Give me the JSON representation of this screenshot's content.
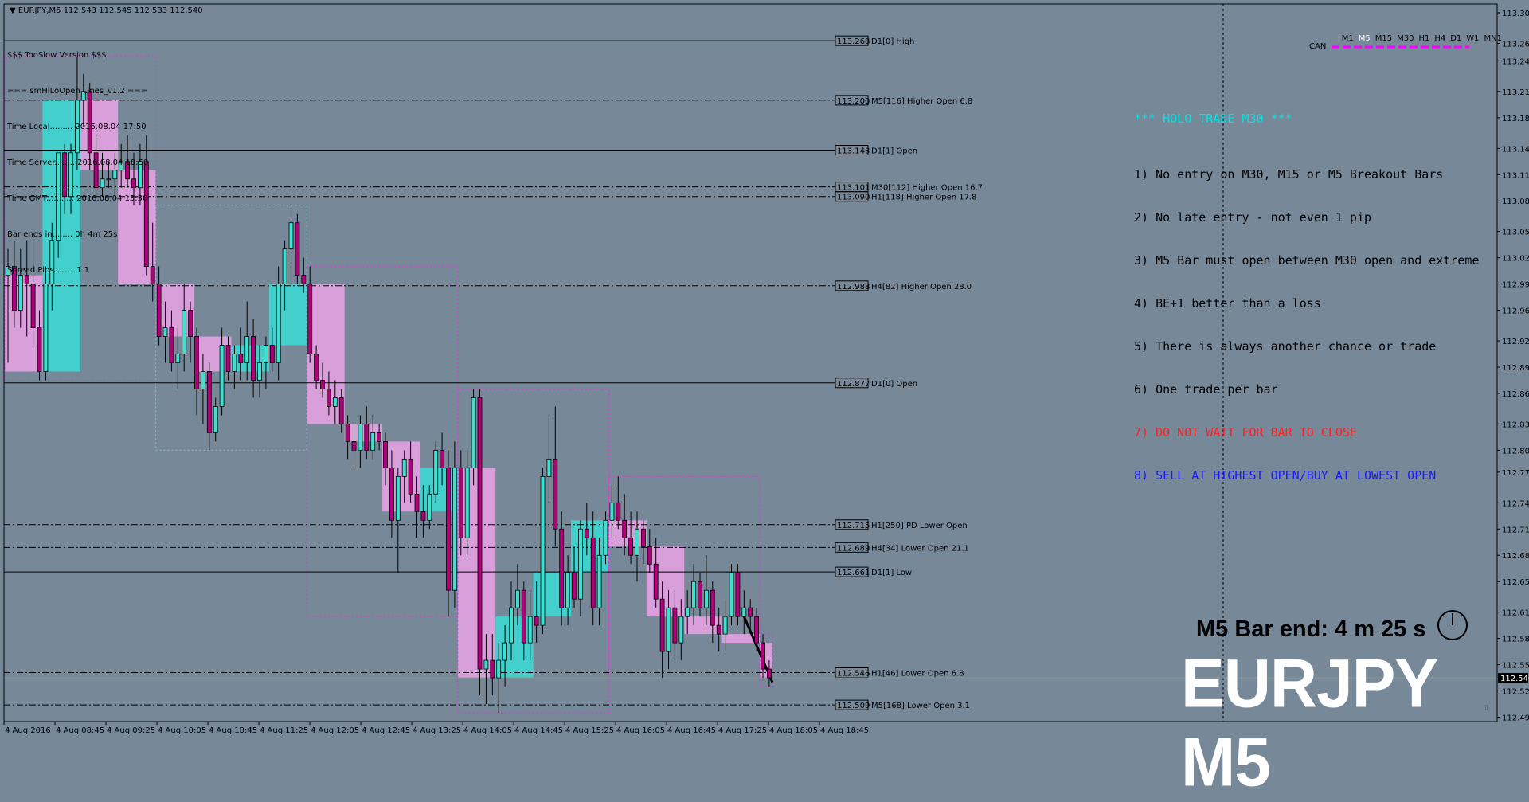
{
  "window": {
    "symbol_header": "EURJPY,M5  112.543 112.545 112.533 112.540"
  },
  "indicator": {
    "lines": [
      "$$$ TooSlow Version $$$",
      "=== smHiLoOpen Lines_v1.2 ===",
      "Time Local......... 2016.08.04 17:50",
      "Time Server........ 2016.08.04 18:50",
      "Time GMT........... 2016.08.04 15:50",
      "Bar ends in........ 0h 4m 25s",
      "Spread Pips........ 1.1"
    ]
  },
  "timeframes": {
    "items": [
      "M1",
      "M5",
      "M15",
      "M30",
      "H1",
      "H4",
      "D1",
      "W1",
      "MN1"
    ],
    "active": "M5",
    "can_label": "CAN"
  },
  "holo": {
    "title": "*** HOLO TRADE M30 ***",
    "rules": [
      {
        "text": "1) No entry on M30, M15 or M5 Breakout Bars",
        "style": "normal"
      },
      {
        "text": "2) No late entry - not even 1 pip",
        "style": "normal"
      },
      {
        "text": "3) M5 Bar must open between M30 open and extreme",
        "style": "normal"
      },
      {
        "text": "4) BE+1 better than a loss",
        "style": "normal"
      },
      {
        "text": "5) There is always another chance or trade",
        "style": "normal"
      },
      {
        "text": "6) One trade per bar",
        "style": "normal"
      },
      {
        "text": "7) DO NOT WAIT FOR BAR TO CLOSE",
        "style": "red"
      },
      {
        "text": "8) SELL AT HIGHEST OPEN/BUY AT LOWEST OPEN",
        "style": "blue"
      }
    ]
  },
  "bar_end_text": "M5 Bar end: 4 m 25 s",
  "big_symbol": "EURJPY M5",
  "colors": {
    "background": "#778899",
    "bull_box": "#40d4d0",
    "bear_box": "#dda0dd",
    "candle_bull": "#40e0d0",
    "candle_bear": "#b0007a",
    "current_price_bg": "#000000"
  },
  "chart_data": {
    "type": "candlestick",
    "symbol": "EURJPY",
    "timeframe": "M5",
    "ylim": [
      112.49,
      113.31
    ],
    "current_price": 112.54,
    "x_ticks": [
      "4 Aug 2016",
      "4 Aug 08:45",
      "4 Aug 09:25",
      "4 Aug 10:05",
      "4 Aug 10:45",
      "4 Aug 11:25",
      "4 Aug 12:05",
      "4 Aug 12:45",
      "4 Aug 13:25",
      "4 Aug 14:05",
      "4 Aug 14:45",
      "4 Aug 15:25",
      "4 Aug 16:05",
      "4 Aug 16:45",
      "4 Aug 17:25",
      "4 Aug 18:05",
      "4 Aug 18:45"
    ],
    "y_ticks": [
      113.3,
      113.265,
      113.245,
      113.21,
      113.18,
      113.145,
      113.115,
      113.085,
      113.05,
      113.02,
      112.99,
      112.96,
      112.925,
      112.895,
      112.865,
      112.83,
      112.8,
      112.775,
      112.74,
      112.71,
      112.68,
      112.65,
      112.615,
      112.585,
      112.555,
      112.525,
      112.495
    ],
    "levels": [
      {
        "price": "113.268",
        "label": "D1[0] High",
        "style": "solid"
      },
      {
        "price": "113.200",
        "label": "M5[116] Higher Open 6.8",
        "style": "dashdot"
      },
      {
        "price": "113.143",
        "label": "D1[1] Open",
        "style": "solid"
      },
      {
        "price": "113.101",
        "label": "M30[112] Higher Open 16.7",
        "style": "dashdot"
      },
      {
        "price": "113.090",
        "label": "H1[118] Higher Open 17.8",
        "style": "dashdot"
      },
      {
        "price": "112.988",
        "label": "H4[82] Higher Open 28.0",
        "style": "dashdot"
      },
      {
        "price": "112.877",
        "label": "D1[0] Open",
        "style": "solid"
      },
      {
        "price": "112.715",
        "label": "H1[250] PD Lower Open",
        "style": "dashdot"
      },
      {
        "price": "112.689",
        "label": "H4[34] Lower Open 21.1",
        "style": "dashdot"
      },
      {
        "price": "112.661",
        "label": "D1[1] Low",
        "style": "solid"
      },
      {
        "price": "112.546",
        "label": "H1[46] Lower Open 6.8",
        "style": "dashdot"
      },
      {
        "price": "112.509",
        "label": "M5[168] Lower Open 3.1",
        "style": "dashdot"
      }
    ],
    "candles": [
      {
        "o": 113.0,
        "h": 113.03,
        "l": 112.9,
        "c": 113.01
      },
      {
        "o": 113.01,
        "h": 113.04,
        "l": 112.94,
        "c": 112.96
      },
      {
        "o": 112.96,
        "h": 113.03,
        "l": 112.94,
        "c": 113.0
      },
      {
        "o": 113.0,
        "h": 113.04,
        "l": 112.93,
        "c": 112.99
      },
      {
        "o": 112.99,
        "h": 113.05,
        "l": 112.92,
        "c": 112.94
      },
      {
        "o": 112.94,
        "h": 112.96,
        "l": 112.88,
        "c": 112.89
      },
      {
        "o": 112.89,
        "h": 113.01,
        "l": 112.88,
        "c": 112.99
      },
      {
        "o": 112.99,
        "h": 113.06,
        "l": 112.96,
        "c": 113.04
      },
      {
        "o": 113.04,
        "h": 113.14,
        "l": 113.02,
        "c": 113.14
      },
      {
        "o": 113.14,
        "h": 113.15,
        "l": 113.07,
        "c": 113.09
      },
      {
        "o": 113.09,
        "h": 113.15,
        "l": 113.07,
        "c": 113.14
      },
      {
        "o": 113.14,
        "h": 113.25,
        "l": 113.12,
        "c": 113.2
      },
      {
        "o": 113.2,
        "h": 113.23,
        "l": 113.17,
        "c": 113.21
      },
      {
        "o": 113.21,
        "h": 113.22,
        "l": 113.12,
        "c": 113.14
      },
      {
        "o": 113.14,
        "h": 113.16,
        "l": 113.09,
        "c": 113.1
      },
      {
        "o": 113.1,
        "h": 113.14,
        "l": 113.09,
        "c": 113.11
      },
      {
        "o": 113.11,
        "h": 113.13,
        "l": 113.1,
        "c": 113.11
      },
      {
        "o": 113.11,
        "h": 113.14,
        "l": 113.09,
        "c": 113.12
      },
      {
        "o": 113.12,
        "h": 113.15,
        "l": 113.1,
        "c": 113.13
      },
      {
        "o": 113.13,
        "h": 113.16,
        "l": 113.1,
        "c": 113.11
      },
      {
        "o": 113.11,
        "h": 113.14,
        "l": 113.08,
        "c": 113.1
      },
      {
        "o": 113.1,
        "h": 113.15,
        "l": 113.08,
        "c": 113.13
      },
      {
        "o": 113.13,
        "h": 113.16,
        "l": 113.0,
        "c": 113.01
      },
      {
        "o": 113.01,
        "h": 113.06,
        "l": 112.97,
        "c": 112.99
      },
      {
        "o": 112.99,
        "h": 113.01,
        "l": 112.92,
        "c": 112.93
      },
      {
        "o": 112.93,
        "h": 112.97,
        "l": 112.9,
        "c": 112.94
      },
      {
        "o": 112.94,
        "h": 112.96,
        "l": 112.89,
        "c": 112.9
      },
      {
        "o": 112.9,
        "h": 112.94,
        "l": 112.87,
        "c": 112.91
      },
      {
        "o": 112.91,
        "h": 112.99,
        "l": 112.89,
        "c": 112.96
      },
      {
        "o": 112.96,
        "h": 112.97,
        "l": 112.9,
        "c": 112.93
      },
      {
        "o": 112.93,
        "h": 112.94,
        "l": 112.84,
        "c": 112.87
      },
      {
        "o": 112.87,
        "h": 112.91,
        "l": 112.83,
        "c": 112.89
      },
      {
        "o": 112.89,
        "h": 112.9,
        "l": 112.8,
        "c": 112.82
      },
      {
        "o": 112.82,
        "h": 112.86,
        "l": 112.81,
        "c": 112.85
      },
      {
        "o": 112.85,
        "h": 112.94,
        "l": 112.84,
        "c": 112.92
      },
      {
        "o": 112.92,
        "h": 112.93,
        "l": 112.88,
        "c": 112.89
      },
      {
        "o": 112.89,
        "h": 112.92,
        "l": 112.87,
        "c": 112.91
      },
      {
        "o": 112.91,
        "h": 112.94,
        "l": 112.88,
        "c": 112.9
      },
      {
        "o": 112.9,
        "h": 112.97,
        "l": 112.88,
        "c": 112.93
      },
      {
        "o": 112.93,
        "h": 112.95,
        "l": 112.86,
        "c": 112.88
      },
      {
        "o": 112.88,
        "h": 112.92,
        "l": 112.86,
        "c": 112.9
      },
      {
        "o": 112.9,
        "h": 112.93,
        "l": 112.87,
        "c": 112.92
      },
      {
        "o": 112.92,
        "h": 112.94,
        "l": 112.89,
        "c": 112.9
      },
      {
        "o": 112.9,
        "h": 113.01,
        "l": 112.88,
        "c": 112.99
      },
      {
        "o": 112.99,
        "h": 113.04,
        "l": 112.96,
        "c": 113.03
      },
      {
        "o": 113.03,
        "h": 113.08,
        "l": 113.01,
        "c": 113.06
      },
      {
        "o": 113.06,
        "h": 113.07,
        "l": 112.99,
        "c": 113.0
      },
      {
        "o": 113.0,
        "h": 113.02,
        "l": 112.98,
        "c": 112.99
      },
      {
        "o": 112.99,
        "h": 113.01,
        "l": 112.9,
        "c": 112.91
      },
      {
        "o": 112.91,
        "h": 112.92,
        "l": 112.87,
        "c": 112.88
      },
      {
        "o": 112.88,
        "h": 112.9,
        "l": 112.86,
        "c": 112.87
      },
      {
        "o": 112.87,
        "h": 112.89,
        "l": 112.84,
        "c": 112.85
      },
      {
        "o": 112.85,
        "h": 112.88,
        "l": 112.83,
        "c": 112.86
      },
      {
        "o": 112.86,
        "h": 112.87,
        "l": 112.82,
        "c": 112.83
      },
      {
        "o": 112.83,
        "h": 112.84,
        "l": 112.79,
        "c": 112.81
      },
      {
        "o": 112.81,
        "h": 112.83,
        "l": 112.78,
        "c": 112.8
      },
      {
        "o": 112.8,
        "h": 112.84,
        "l": 112.78,
        "c": 112.83
      },
      {
        "o": 112.83,
        "h": 112.85,
        "l": 112.79,
        "c": 112.8
      },
      {
        "o": 112.8,
        "h": 112.84,
        "l": 112.79,
        "c": 112.82
      },
      {
        "o": 112.82,
        "h": 112.83,
        "l": 112.8,
        "c": 112.81
      },
      {
        "o": 112.81,
        "h": 112.82,
        "l": 112.76,
        "c": 112.78
      },
      {
        "o": 112.78,
        "h": 112.8,
        "l": 112.7,
        "c": 112.72
      },
      {
        "o": 112.72,
        "h": 112.78,
        "l": 112.66,
        "c": 112.77
      },
      {
        "o": 112.77,
        "h": 112.8,
        "l": 112.74,
        "c": 112.79
      },
      {
        "o": 112.79,
        "h": 112.81,
        "l": 112.74,
        "c": 112.75
      },
      {
        "o": 112.75,
        "h": 112.77,
        "l": 112.7,
        "c": 112.73
      },
      {
        "o": 112.73,
        "h": 112.76,
        "l": 112.7,
        "c": 112.72
      },
      {
        "o": 112.72,
        "h": 112.76,
        "l": 112.71,
        "c": 112.75
      },
      {
        "o": 112.75,
        "h": 112.81,
        "l": 112.74,
        "c": 112.8
      },
      {
        "o": 112.8,
        "h": 112.82,
        "l": 112.76,
        "c": 112.78
      },
      {
        "o": 112.78,
        "h": 112.8,
        "l": 112.61,
        "c": 112.64
      },
      {
        "o": 112.64,
        "h": 112.81,
        "l": 112.62,
        "c": 112.78
      },
      {
        "o": 112.78,
        "h": 112.8,
        "l": 112.68,
        "c": 112.7
      },
      {
        "o": 112.7,
        "h": 112.8,
        "l": 112.68,
        "c": 112.78
      },
      {
        "o": 112.78,
        "h": 112.87,
        "l": 112.76,
        "c": 112.86
      },
      {
        "o": 112.86,
        "h": 112.87,
        "l": 112.52,
        "c": 112.55
      },
      {
        "o": 112.55,
        "h": 112.59,
        "l": 112.51,
        "c": 112.56
      },
      {
        "o": 112.56,
        "h": 112.59,
        "l": 112.52,
        "c": 112.54
      },
      {
        "o": 112.54,
        "h": 112.58,
        "l": 112.5,
        "c": 112.56
      },
      {
        "o": 112.56,
        "h": 112.6,
        "l": 112.53,
        "c": 112.58
      },
      {
        "o": 112.58,
        "h": 112.65,
        "l": 112.56,
        "c": 112.62
      },
      {
        "o": 112.62,
        "h": 112.67,
        "l": 112.6,
        "c": 112.64
      },
      {
        "o": 112.64,
        "h": 112.65,
        "l": 112.56,
        "c": 112.58
      },
      {
        "o": 112.58,
        "h": 112.64,
        "l": 112.56,
        "c": 112.61
      },
      {
        "o": 112.61,
        "h": 112.65,
        "l": 112.58,
        "c": 112.6
      },
      {
        "o": 112.6,
        "h": 112.78,
        "l": 112.59,
        "c": 112.77
      },
      {
        "o": 112.77,
        "h": 112.84,
        "l": 112.74,
        "c": 112.79
      },
      {
        "o": 112.79,
        "h": 112.85,
        "l": 112.69,
        "c": 112.71
      },
      {
        "o": 112.71,
        "h": 112.73,
        "l": 112.6,
        "c": 112.62
      },
      {
        "o": 112.62,
        "h": 112.68,
        "l": 112.6,
        "c": 112.66
      },
      {
        "o": 112.66,
        "h": 112.69,
        "l": 112.62,
        "c": 112.63
      },
      {
        "o": 112.63,
        "h": 112.72,
        "l": 112.61,
        "c": 112.71
      },
      {
        "o": 112.71,
        "h": 112.74,
        "l": 112.68,
        "c": 112.7
      },
      {
        "o": 112.7,
        "h": 112.73,
        "l": 112.6,
        "c": 112.62
      },
      {
        "o": 112.62,
        "h": 112.7,
        "l": 112.6,
        "c": 112.68
      },
      {
        "o": 112.68,
        "h": 112.73,
        "l": 112.67,
        "c": 112.72
      },
      {
        "o": 112.72,
        "h": 112.76,
        "l": 112.7,
        "c": 112.74
      },
      {
        "o": 112.74,
        "h": 112.77,
        "l": 112.71,
        "c": 112.72
      },
      {
        "o": 112.72,
        "h": 112.75,
        "l": 112.68,
        "c": 112.7
      },
      {
        "o": 112.7,
        "h": 112.73,
        "l": 112.67,
        "c": 112.68
      },
      {
        "o": 112.68,
        "h": 112.73,
        "l": 112.65,
        "c": 112.71
      },
      {
        "o": 112.71,
        "h": 112.72,
        "l": 112.67,
        "c": 112.69
      },
      {
        "o": 112.69,
        "h": 112.71,
        "l": 112.66,
        "c": 112.67
      },
      {
        "o": 112.67,
        "h": 112.7,
        "l": 112.62,
        "c": 112.63
      },
      {
        "o": 112.63,
        "h": 112.65,
        "l": 112.54,
        "c": 112.57
      },
      {
        "o": 112.57,
        "h": 112.64,
        "l": 112.55,
        "c": 112.62
      },
      {
        "o": 112.62,
        "h": 112.64,
        "l": 112.56,
        "c": 112.58
      },
      {
        "o": 112.58,
        "h": 112.63,
        "l": 112.56,
        "c": 112.61
      },
      {
        "o": 112.61,
        "h": 112.64,
        "l": 112.59,
        "c": 112.62
      },
      {
        "o": 112.62,
        "h": 112.67,
        "l": 112.6,
        "c": 112.65
      },
      {
        "o": 112.65,
        "h": 112.66,
        "l": 112.61,
        "c": 112.62
      },
      {
        "o": 112.62,
        "h": 112.68,
        "l": 112.6,
        "c": 112.64
      },
      {
        "o": 112.64,
        "h": 112.65,
        "l": 112.58,
        "c": 112.6
      },
      {
        "o": 112.6,
        "h": 112.62,
        "l": 112.57,
        "c": 112.59
      },
      {
        "o": 112.59,
        "h": 112.63,
        "l": 112.57,
        "c": 112.61
      },
      {
        "o": 112.61,
        "h": 112.67,
        "l": 112.6,
        "c": 112.66
      },
      {
        "o": 112.66,
        "h": 112.67,
        "l": 112.6,
        "c": 112.61
      },
      {
        "o": 112.61,
        "h": 112.64,
        "l": 112.59,
        "c": 112.62
      },
      {
        "o": 112.62,
        "h": 112.63,
        "l": 112.59,
        "c": 112.61
      },
      {
        "o": 112.61,
        "h": 112.62,
        "l": 112.57,
        "c": 112.58
      },
      {
        "o": 112.58,
        "h": 112.59,
        "l": 112.54,
        "c": 112.55
      },
      {
        "o": 112.55,
        "h": 112.56,
        "l": 112.53,
        "c": 112.54
      }
    ]
  }
}
